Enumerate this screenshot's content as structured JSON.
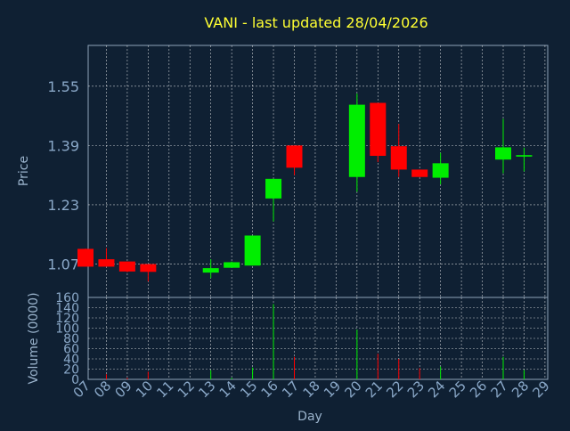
{
  "chart_data": {
    "type": "candlestick",
    "title": "VANI - last updated 28/04/2026",
    "xlabel": "Day",
    "ylabel_price": "Price",
    "ylabel_volume": "Volume (0000)",
    "x_ticks": [
      "07",
      "08",
      "09",
      "10",
      "11",
      "12",
      "13",
      "14",
      "15",
      "16",
      "17",
      "18",
      "19",
      "20",
      "21",
      "22",
      "23",
      "24",
      "25",
      "26",
      "27",
      "28",
      "29"
    ],
    "price_ticks": [
      "1.07",
      "1.23",
      "1.39",
      "1.55"
    ],
    "price_ylim": [
      0.98,
      1.66
    ],
    "volume_ticks": [
      "0",
      "20",
      "40",
      "60",
      "80",
      "100",
      "120",
      "140",
      "160"
    ],
    "volume_ylim": [
      0,
      160
    ],
    "grid": true,
    "colors": {
      "background": "#0f2033",
      "title": "#ffff33",
      "axis_text": "#9ab3cc",
      "tick_text": "#8aa8c8",
      "up": "#00ee00",
      "down": "#ff0000",
      "grid": "#ffffff",
      "frame": "#8fa3b8"
    },
    "candles": [
      {
        "day": "07",
        "open": 1.111,
        "close": 1.063,
        "high": 1.112,
        "low": 1.063
      },
      {
        "day": "08",
        "open": 1.083,
        "close": 1.063,
        "high": 1.113,
        "low": 1.063
      },
      {
        "day": "09",
        "open": 1.077,
        "close": 1.05,
        "high": 1.077,
        "low": 1.048
      },
      {
        "day": "10",
        "open": 1.07,
        "close": 1.049,
        "high": 1.07,
        "low": 1.023
      },
      {
        "day": "13",
        "open": 1.047,
        "close": 1.059,
        "high": 1.083,
        "low": 1.032
      },
      {
        "day": "14",
        "open": 1.06,
        "close": 1.075,
        "high": 1.077,
        "low": 1.06
      },
      {
        "day": "15",
        "open": 1.066,
        "close": 1.147,
        "high": 1.147,
        "low": 1.066
      },
      {
        "day": "16",
        "open": 1.247,
        "close": 1.3,
        "high": 1.3,
        "low": 1.185
      },
      {
        "day": "17",
        "open": 1.39,
        "close": 1.33,
        "high": 1.39,
        "low": 1.31
      },
      {
        "day": "20",
        "open": 1.305,
        "close": 1.5,
        "high": 1.53,
        "low": 1.265
      },
      {
        "day": "21",
        "open": 1.505,
        "close": 1.362,
        "high": 1.505,
        "low": 1.345
      },
      {
        "day": "22",
        "open": 1.388,
        "close": 1.325,
        "high": 1.448,
        "low": 1.305
      },
      {
        "day": "23",
        "open": 1.325,
        "close": 1.305,
        "high": 1.325,
        "low": 1.305
      },
      {
        "day": "24",
        "open": 1.303,
        "close": 1.342,
        "high": 1.37,
        "low": 1.285
      },
      {
        "day": "27",
        "open": 1.352,
        "close": 1.385,
        "high": 1.462,
        "low": 1.315
      },
      {
        "day": "28",
        "open": 1.36,
        "close": 1.364,
        "high": 1.384,
        "low": 1.32
      }
    ],
    "volume": [
      {
        "day": "07",
        "value": 0,
        "dir": "down"
      },
      {
        "day": "08",
        "value": 10,
        "dir": "down"
      },
      {
        "day": "09",
        "value": 3,
        "dir": "down"
      },
      {
        "day": "10",
        "value": 15,
        "dir": "down"
      },
      {
        "day": "13",
        "value": 18,
        "dir": "up"
      },
      {
        "day": "14",
        "value": 3,
        "dir": "up"
      },
      {
        "day": "15",
        "value": 23,
        "dir": "up"
      },
      {
        "day": "16",
        "value": 147,
        "dir": "up"
      },
      {
        "day": "17",
        "value": 44,
        "dir": "down"
      },
      {
        "day": "20",
        "value": 97,
        "dir": "up"
      },
      {
        "day": "21",
        "value": 50,
        "dir": "down"
      },
      {
        "day": "22",
        "value": 40,
        "dir": "down"
      },
      {
        "day": "23",
        "value": 22,
        "dir": "down"
      },
      {
        "day": "24",
        "value": 25,
        "dir": "up"
      },
      {
        "day": "27",
        "value": 44,
        "dir": "up"
      },
      {
        "day": "28",
        "value": 18,
        "dir": "up"
      }
    ]
  }
}
